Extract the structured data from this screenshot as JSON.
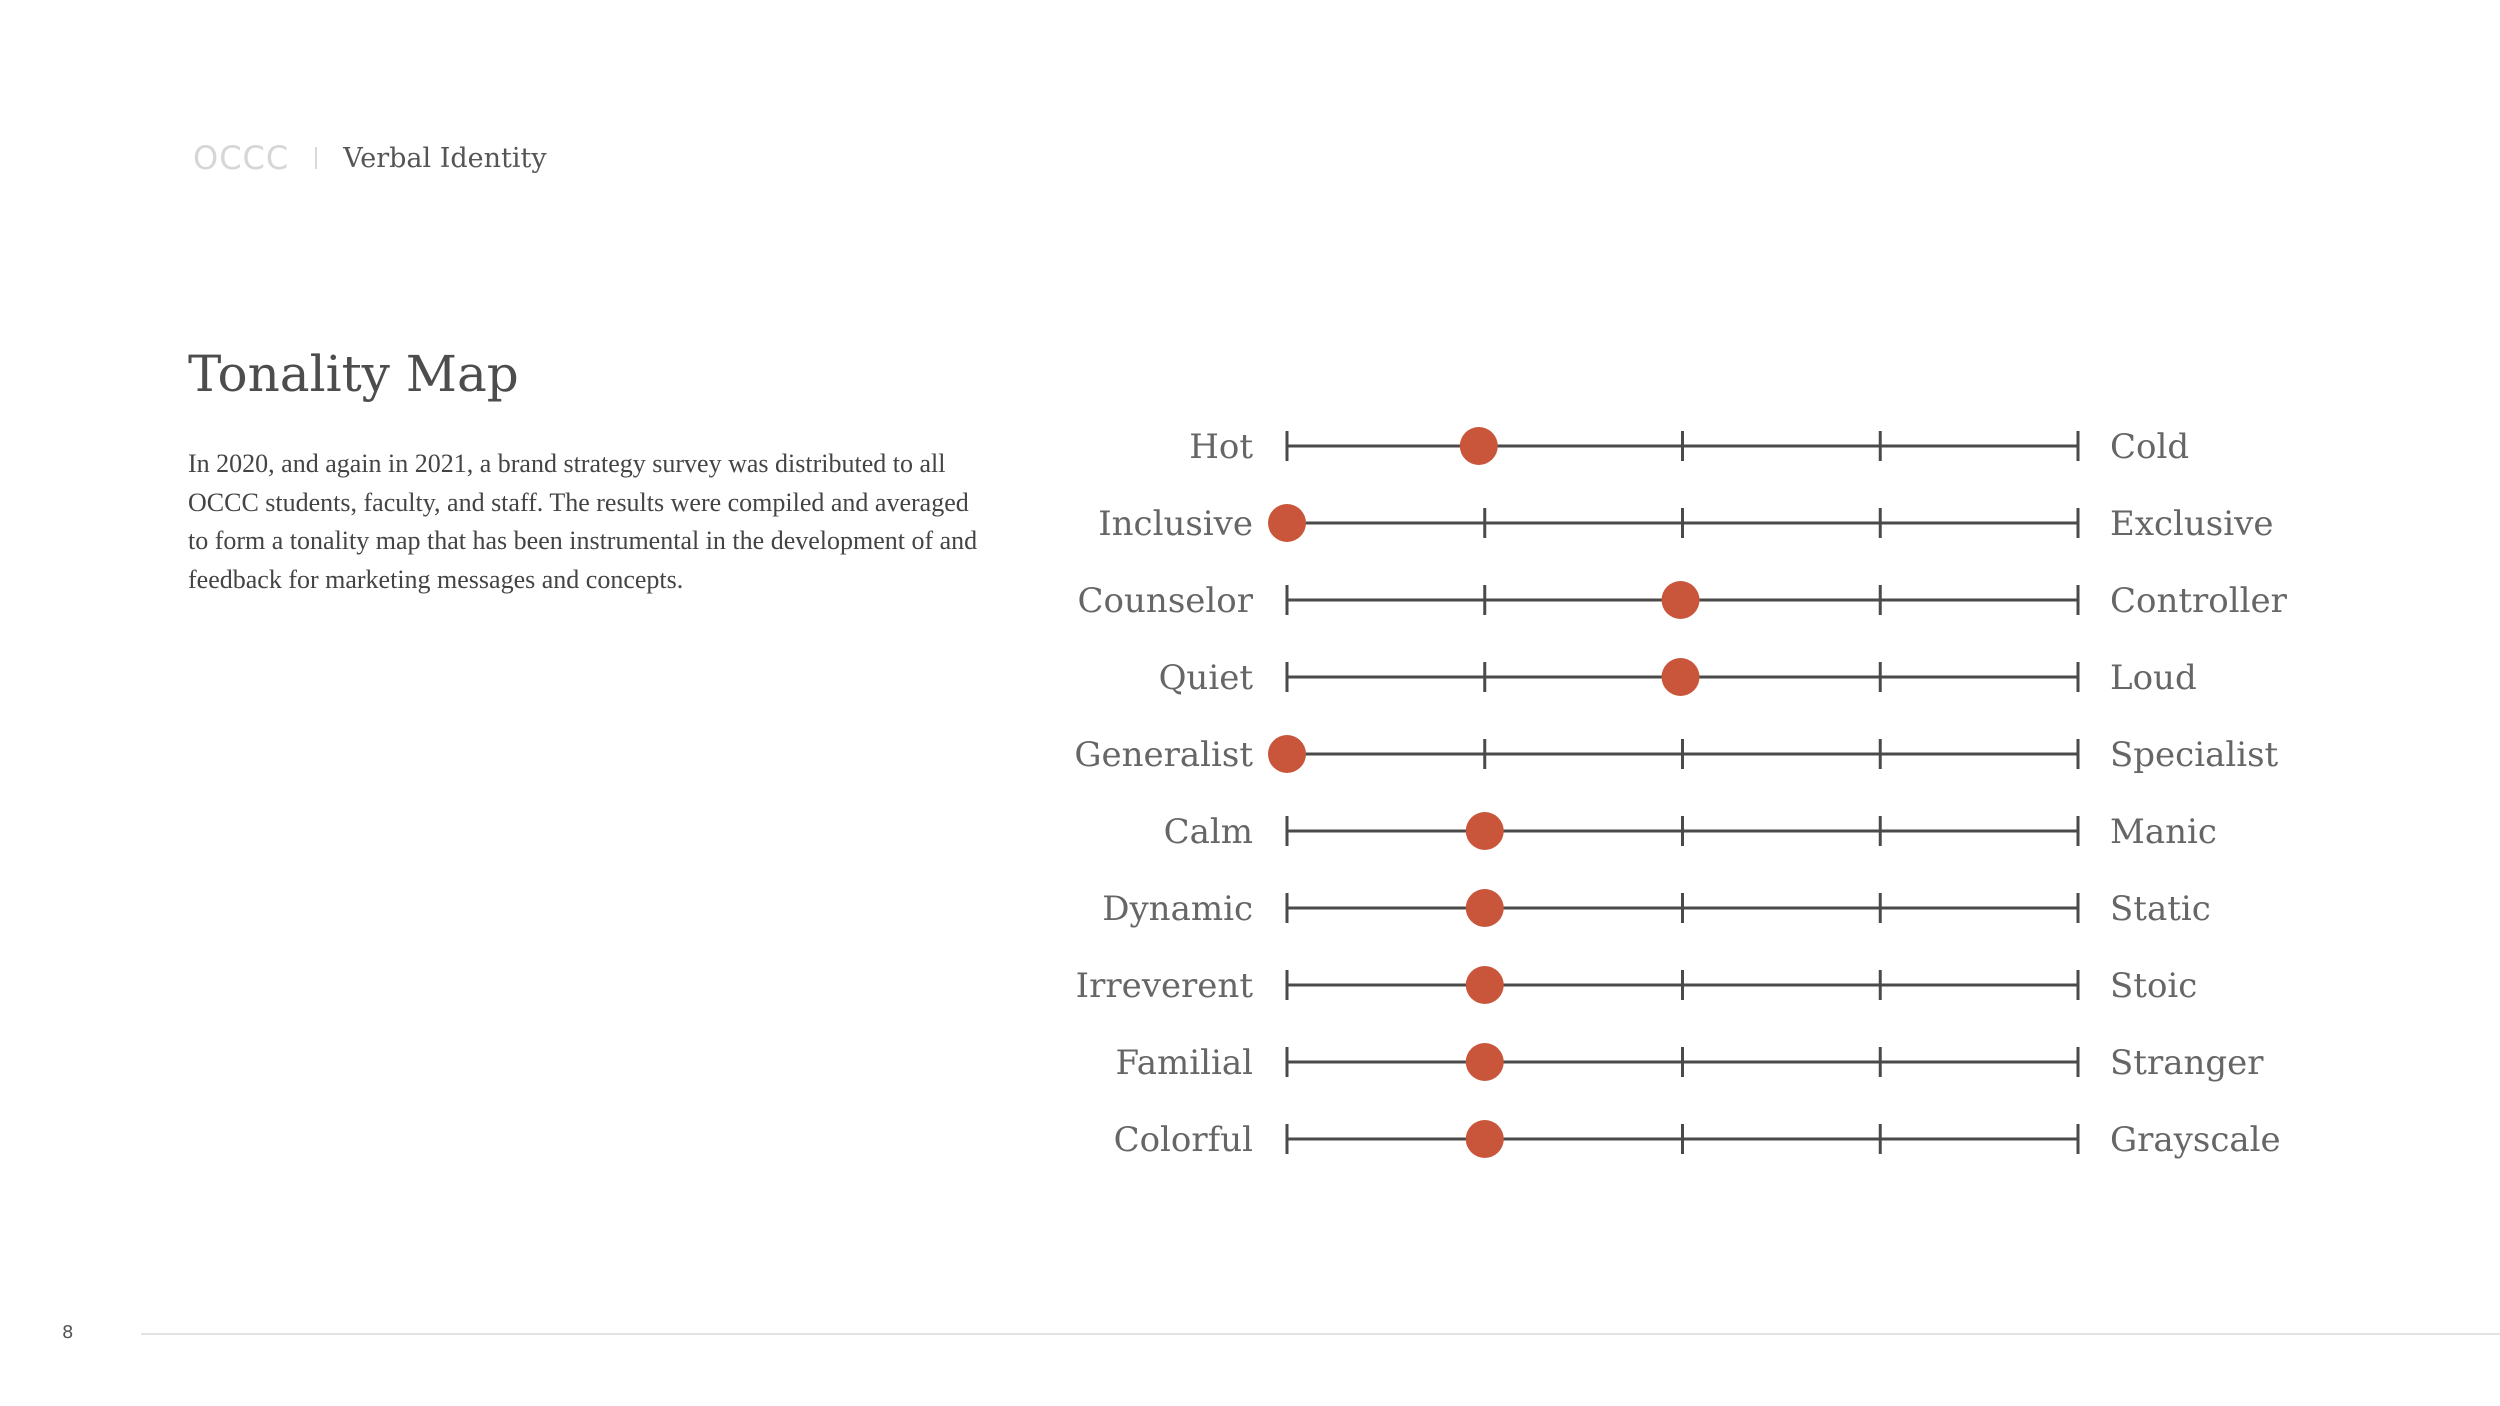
{
  "header": {
    "logo": "OCCC",
    "section": "Verbal Identity"
  },
  "title": "Tonality Map",
  "intro": "In 2020, and again in 2021, a brand strategy survey was distributed to all OCCC students, faculty, and staff. The results were compiled and averaged to form a tonality map that has been instrumental in the development of and feedback for marketing messages and concepts.",
  "page_number": "8",
  "colors": {
    "marker": "#c9553a",
    "line": "#4a4a4a",
    "label": "#666666"
  },
  "chart_data": {
    "type": "scatter",
    "scale_points": 5,
    "xlim": [
      1,
      5
    ],
    "rows": [
      {
        "left": "Hot",
        "right": "Cold",
        "value": 1.97
      },
      {
        "left": "Inclusive",
        "right": "Exclusive",
        "value": 1.0
      },
      {
        "left": "Counselor",
        "right": "Controller",
        "value": 2.99
      },
      {
        "left": "Quiet",
        "right": "Loud",
        "value": 2.99
      },
      {
        "left": "Generalist",
        "right": "Specialist",
        "value": 1.0
      },
      {
        "left": "Calm",
        "right": "Manic",
        "value": 2.0
      },
      {
        "left": "Dynamic",
        "right": "Static",
        "value": 2.0
      },
      {
        "left": "Irreverent",
        "right": "Stoic",
        "value": 2.0
      },
      {
        "left": "Familial",
        "right": "Stranger",
        "value": 2.0
      },
      {
        "left": "Colorful",
        "right": "Grayscale",
        "value": 2.0
      }
    ]
  }
}
